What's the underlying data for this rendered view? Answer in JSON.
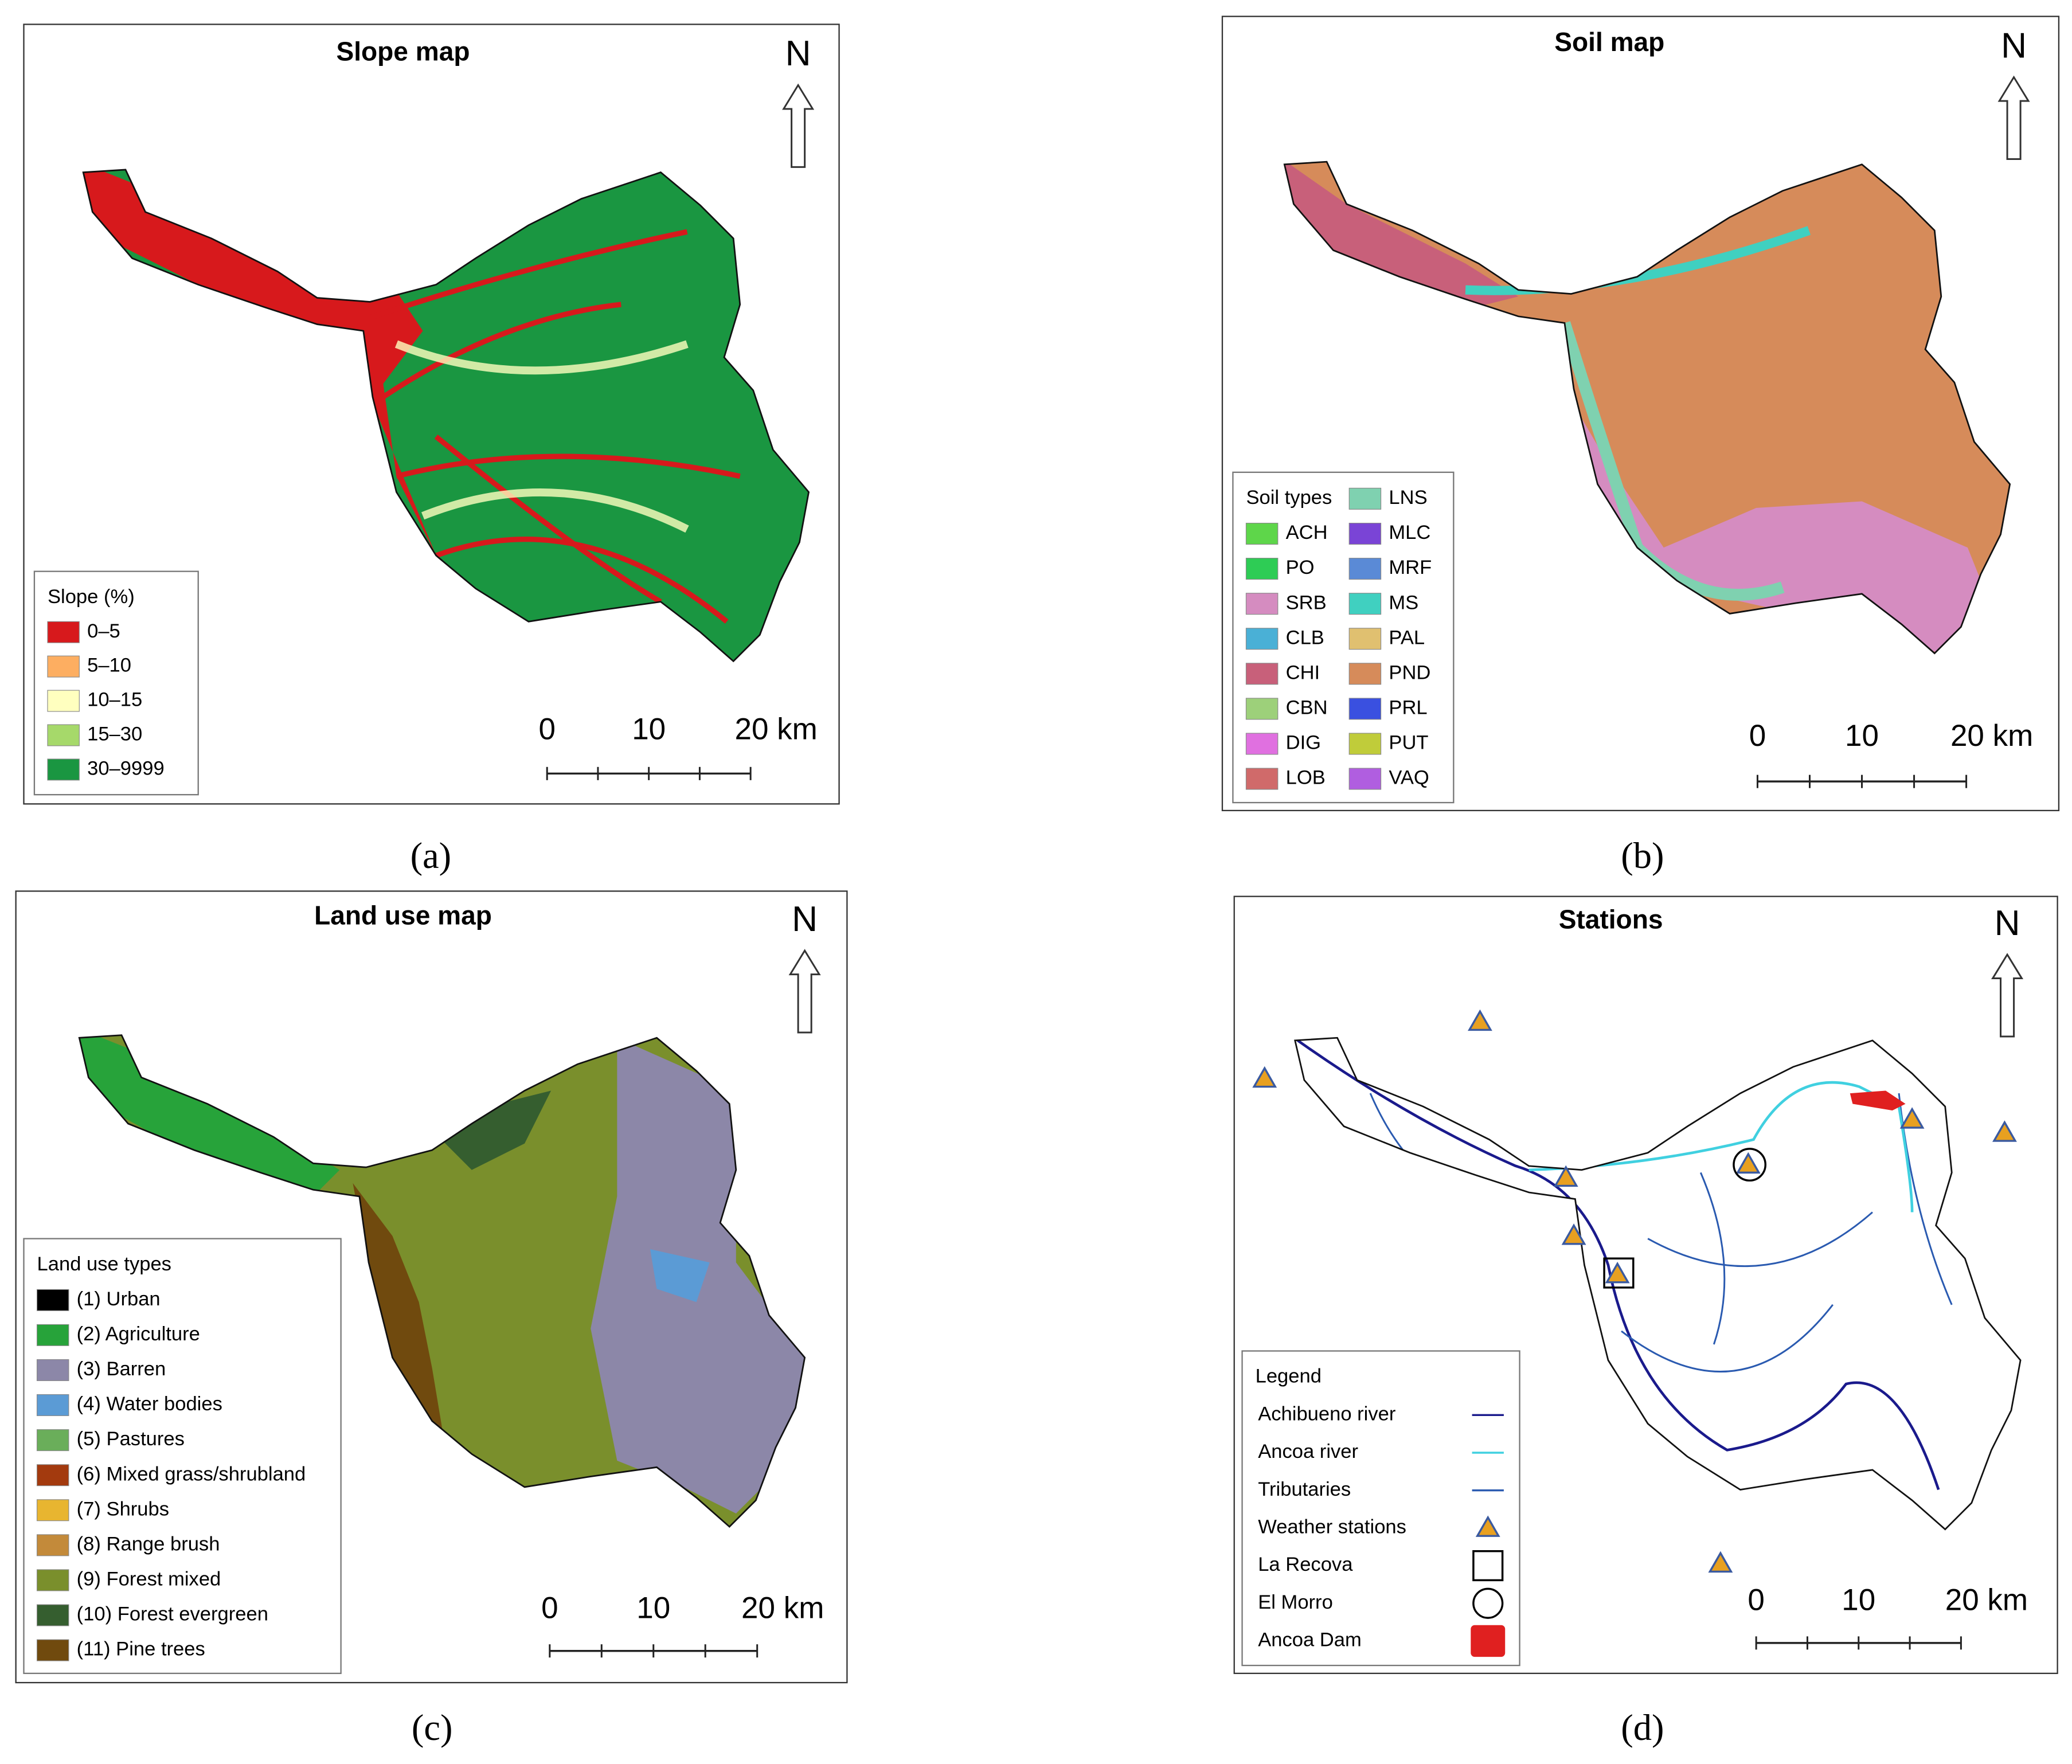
{
  "panels": [
    {
      "caption": "(a)",
      "title": "Slope map",
      "north": "N",
      "scale": [
        "0",
        "10",
        "20 km"
      ],
      "legend": {
        "title": "Slope (%)",
        "items": [
          {
            "label": "0–5",
            "color": "#d7191c"
          },
          {
            "label": "5–10",
            "color": "#fdae61"
          },
          {
            "label": "10–15",
            "color": "#ffffbf"
          },
          {
            "label": "15–30",
            "color": "#a6d96a"
          },
          {
            "label": "30–9999",
            "color": "#1a9641"
          }
        ]
      }
    },
    {
      "caption": "(b)",
      "title": "Soil map",
      "north": "N",
      "scale": [
        "0",
        "10",
        "20 km"
      ],
      "legend": {
        "title": "Soil types",
        "items": [
          {
            "label": "ACH",
            "color": "#5ed64a"
          },
          {
            "label": "PO",
            "color": "#2ecc55"
          },
          {
            "label": "SRB",
            "color": "#d58cc0"
          },
          {
            "label": "CLB",
            "color": "#4ab0d6"
          },
          {
            "label": "CHI",
            "color": "#c8607a"
          },
          {
            "label": "CBN",
            "color": "#9dd07a"
          },
          {
            "label": "DIG",
            "color": "#e070e0"
          },
          {
            "label": "LOB",
            "color": "#d06a6a"
          },
          {
            "label": "LNS",
            "color": "#7fd1b0"
          },
          {
            "label": "MLC",
            "color": "#7a44d6"
          },
          {
            "label": "MRF",
            "color": "#5a8ad6"
          },
          {
            "label": "MS",
            "color": "#40d0c0"
          },
          {
            "label": "PAL",
            "color": "#e0c070"
          },
          {
            "label": "PND",
            "color": "#d68b5a"
          },
          {
            "label": "PRL",
            "color": "#3a50e0"
          },
          {
            "label": "PUT",
            "color": "#c0cc3a"
          },
          {
            "label": "VAQ",
            "color": "#b05ee0"
          }
        ]
      }
    },
    {
      "caption": "(c)",
      "title": "Land use map",
      "north": "N",
      "scale": [
        "0",
        "10",
        "20 km"
      ],
      "legend": {
        "title": "Land use types",
        "items": [
          {
            "label": "(1) Urban",
            "color": "#000000"
          },
          {
            "label": "(2) Agriculture",
            "color": "#27a33a"
          },
          {
            "label": "(3) Barren",
            "color": "#8c87a8"
          },
          {
            "label": "(4) Water bodies",
            "color": "#5b9bd5"
          },
          {
            "label": "(5) Pastures",
            "color": "#6aae5a"
          },
          {
            "label": "(6) Mixed grass/shrubland",
            "color": "#a33a0e"
          },
          {
            "label": "(7) Shrubs",
            "color": "#e8b530"
          },
          {
            "label": "(8) Range brush",
            "color": "#c38a3a"
          },
          {
            "label": "(9) Forest mixed",
            "color": "#7a8f2c"
          },
          {
            "label": "(10) Forest evergreen",
            "color": "#355e2f"
          },
          {
            "label": "(11) Pine trees",
            "color": "#704a0e"
          }
        ]
      }
    },
    {
      "caption": "(d)",
      "title": "Stations",
      "north": "N",
      "scale": [
        "0",
        "10",
        "20 km"
      ],
      "legend": {
        "title": "Legend",
        "items": [
          {
            "label": "Achibueno river",
            "color": "#1a1a8c",
            "marker": "line"
          },
          {
            "label": "Ancoa river",
            "color": "#40d0e0",
            "marker": "line"
          },
          {
            "label": "Tributaries",
            "color": "#2a5ab0",
            "marker": "line"
          },
          {
            "label": "Weather stations",
            "color": "#e8a020",
            "marker": "triangle"
          },
          {
            "label": "La Recova",
            "color": "#000000",
            "marker": "square"
          },
          {
            "label": "El Morro",
            "color": "#000000",
            "marker": "circle"
          },
          {
            "label": "Ancoa Dam",
            "color": "#e02020",
            "marker": "fill"
          }
        ]
      }
    }
  ]
}
